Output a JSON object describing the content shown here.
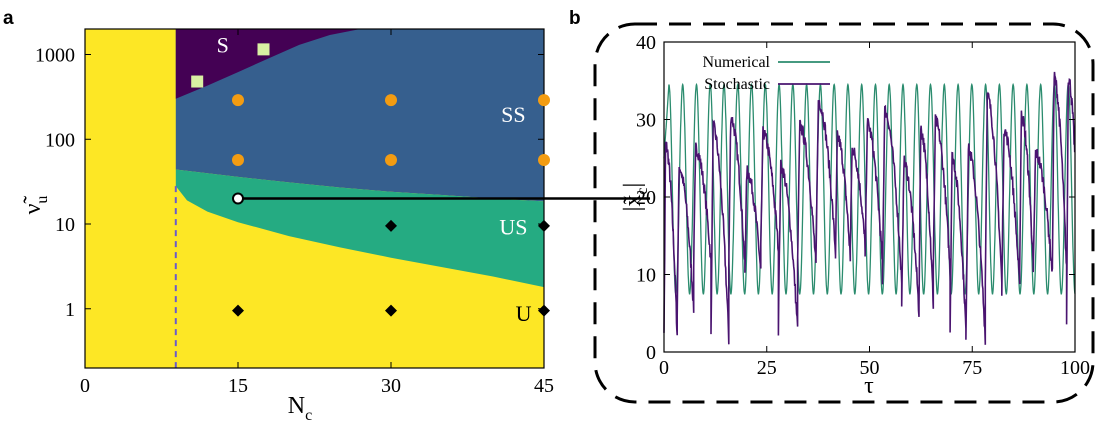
{
  "chart_data": [
    {
      "panel": "a",
      "type": "heatmap",
      "xlabel": "N",
      "xlabel_sub": "c",
      "ylabel": "ν̃",
      "ylabel_sub": "u",
      "xlim": [
        0,
        45
      ],
      "ylim": [
        0.2,
        2000
      ],
      "yscale": "log",
      "xticks": [
        "0",
        "15",
        "30",
        "45"
      ],
      "xtick_values": [
        0,
        15,
        30,
        45
      ],
      "yticks": [
        "1",
        "10",
        "100",
        "1000"
      ],
      "ytick_values": [
        1,
        10,
        100,
        1000
      ],
      "grid": false,
      "regions": [
        {
          "label": "S",
          "color": "#440154",
          "label_color": "#ffffff"
        },
        {
          "label": "SS",
          "color": "#365f8e",
          "label_color": "#ffffff"
        },
        {
          "label": "US",
          "color": "#25ab82",
          "label_color": "#ffffff"
        },
        {
          "label": "U",
          "color": "#fde725",
          "label_color": "#000000"
        }
      ],
      "boundaries": {
        "left_edge_x": 8.9,
        "vertical_dashed_x": 8.9,
        "S_SS": [
          [
            8.9,
            300
          ],
          [
            12,
            430
          ],
          [
            15,
            620
          ],
          [
            18,
            900
          ],
          [
            21,
            1300
          ],
          [
            24,
            1700
          ],
          [
            27,
            2000
          ]
        ],
        "SS_US": [
          [
            8.9,
            44
          ],
          [
            15,
            36
          ],
          [
            20,
            31
          ],
          [
            25,
            27
          ],
          [
            30,
            24
          ],
          [
            35,
            22
          ],
          [
            40,
            20
          ],
          [
            45,
            18.5
          ]
        ],
        "US_U": [
          [
            8.9,
            28
          ],
          [
            10,
            19
          ],
          [
            12,
            14
          ],
          [
            15,
            10.5
          ],
          [
            20,
            7.2
          ],
          [
            25,
            5.3
          ],
          [
            30,
            4
          ],
          [
            35,
            3.1
          ],
          [
            40,
            2.4
          ],
          [
            45,
            1.8
          ]
        ]
      },
      "markers": [
        {
          "shape": "square",
          "color": "#d9f0a3",
          "x": 11,
          "y": 480
        },
        {
          "shape": "square",
          "color": "#d9f0a3",
          "x": 17.5,
          "y": 1150
        },
        {
          "shape": "circle",
          "color": "#f39c12",
          "x": 15,
          "y": 290
        },
        {
          "shape": "circle",
          "color": "#f39c12",
          "x": 30,
          "y": 290
        },
        {
          "shape": "circle",
          "color": "#f39c12",
          "x": 45,
          "y": 290
        },
        {
          "shape": "circle",
          "color": "#f39c12",
          "x": 15,
          "y": 57
        },
        {
          "shape": "circle",
          "color": "#f39c12",
          "x": 30,
          "y": 57
        },
        {
          "shape": "circle",
          "color": "#f39c12",
          "x": 45,
          "y": 57
        },
        {
          "shape": "hollow-circle",
          "color": "#000000",
          "x": 15,
          "y": 20
        },
        {
          "shape": "diamond",
          "color": "#000000",
          "x": 30,
          "y": 9.5
        },
        {
          "shape": "diamond",
          "color": "#000000",
          "x": 45,
          "y": 9.5
        },
        {
          "shape": "diamond",
          "color": "#000000",
          "x": 15,
          "y": 0.95
        },
        {
          "shape": "diamond",
          "color": "#000000",
          "x": 30,
          "y": 0.95
        },
        {
          "shape": "diamond",
          "color": "#000000",
          "x": 45,
          "y": 0.95
        }
      ]
    },
    {
      "panel": "b",
      "type": "line",
      "xlabel": "τ",
      "ylabel": "|x̃",
      "ylabel_sub": "c",
      "ylabel_close": "|",
      "xlim": [
        0,
        100
      ],
      "ylim": [
        0,
        40
      ],
      "xticks": [
        "0",
        "25",
        "50",
        "75",
        "100"
      ],
      "xtick_values": [
        0,
        25,
        50,
        75,
        100
      ],
      "yticks": [
        "0",
        "10",
        "20",
        "30",
        "40"
      ],
      "ytick_values": [
        0,
        10,
        20,
        30,
        40
      ],
      "grid": false,
      "legend_position": "top-left",
      "series": [
        {
          "name": "Numerical",
          "color": "#2b8c6e",
          "kind": "periodic",
          "period": 3.35,
          "min": 7.5,
          "max": 34.5,
          "start": 25
        },
        {
          "name": "Stochastic",
          "color": "#4a1470",
          "kind": "noisy-spiking"
        }
      ]
    }
  ],
  "panel_labels": {
    "a": "a",
    "b": "b"
  },
  "colors": {
    "connector": "#000000",
    "dashed_frame": "#000000",
    "dashed_vertical": "#6a5acd"
  }
}
